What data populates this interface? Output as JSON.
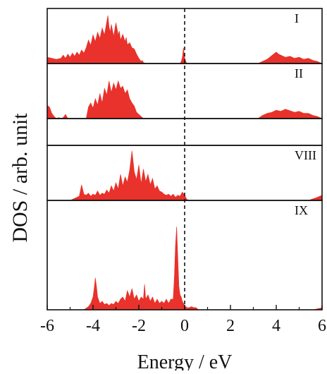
{
  "chart_data": {
    "type": "area",
    "xlabel": "Energy / eV",
    "ylabel": "DOS / arb. unit",
    "xlim": [
      -6,
      6
    ],
    "xticks": [
      -6,
      -4,
      -2,
      0,
      2,
      4,
      6
    ],
    "xtick_labels": [
      "-6",
      "-4",
      "-2",
      "0",
      "2",
      "4",
      "6"
    ],
    "fermi_level": 0,
    "fill_color": "#e8322b",
    "panels": [
      {
        "label": "I",
        "ylim": [
          0,
          1
        ],
        "x": [
          -6,
          -5.8,
          -5.6,
          -5.4,
          -5.3,
          -5.2,
          -5.1,
          -5.0,
          -4.9,
          -4.8,
          -4.7,
          -4.6,
          -4.5,
          -4.4,
          -4.3,
          -4.2,
          -4.1,
          -4.0,
          -3.9,
          -3.8,
          -3.7,
          -3.6,
          -3.5,
          -3.4,
          -3.35,
          -3.3,
          -3.25,
          -3.2,
          -3.1,
          -3.0,
          -2.9,
          -2.85,
          -2.8,
          -2.7,
          -2.6,
          -2.55,
          -2.5,
          -2.4,
          -2.3,
          -2.2,
          -2.1,
          -2.0,
          -1.9,
          -1.85,
          -1.8,
          -1.7,
          -0.2,
          -0.15,
          -0.1,
          -0.05,
          0.0,
          0.05,
          0.1,
          0.2,
          3.2,
          3.4,
          3.6,
          3.8,
          4.0,
          4.1,
          4.2,
          4.4,
          4.6,
          4.8,
          5.0,
          5.2,
          5.4,
          5.6,
          5.8,
          6.0
        ],
        "y": [
          0.12,
          0.1,
          0.08,
          0.1,
          0.16,
          0.1,
          0.18,
          0.12,
          0.2,
          0.14,
          0.22,
          0.16,
          0.26,
          0.2,
          0.3,
          0.45,
          0.35,
          0.55,
          0.42,
          0.6,
          0.48,
          0.68,
          0.55,
          0.8,
          0.92,
          0.7,
          0.6,
          0.75,
          0.52,
          0.78,
          0.55,
          0.62,
          0.45,
          0.56,
          0.42,
          0.5,
          0.36,
          0.4,
          0.3,
          0.28,
          0.18,
          0.1,
          0.04,
          0.06,
          0.02,
          0.0,
          0.0,
          0.04,
          0.12,
          0.3,
          0.12,
          0.04,
          0.0,
          0.0,
          0.0,
          0.04,
          0.08,
          0.15,
          0.22,
          0.18,
          0.16,
          0.12,
          0.14,
          0.1,
          0.12,
          0.08,
          0.1,
          0.06,
          0.04,
          0.0
        ]
      },
      {
        "label": "II",
        "ylim": [
          0,
          1
        ],
        "x": [
          -6,
          -5.9,
          -5.8,
          -5.7,
          -5.6,
          -5.5,
          -5.4,
          -5.3,
          -5.2,
          -5.1,
          -4.3,
          -4.2,
          -4.1,
          -4.0,
          -3.9,
          -3.8,
          -3.7,
          -3.6,
          -3.5,
          -3.4,
          -3.3,
          -3.2,
          -3.1,
          -3.0,
          -2.9,
          -2.8,
          -2.7,
          -2.6,
          -2.5,
          -2.4,
          -2.3,
          -2.2,
          -2.1,
          -2.0,
          -1.9,
          -1.8,
          3.2,
          3.4,
          3.6,
          3.8,
          4.0,
          4.2,
          4.4,
          4.6,
          4.8,
          5.0,
          5.2,
          5.4,
          5.6,
          5.8,
          6.0
        ],
        "y": [
          0.25,
          0.22,
          0.1,
          0.04,
          0.0,
          0.02,
          0.0,
          0.02,
          0.08,
          0.0,
          0.0,
          0.22,
          0.3,
          0.2,
          0.38,
          0.26,
          0.48,
          0.3,
          0.58,
          0.45,
          0.72,
          0.5,
          0.68,
          0.55,
          0.72,
          0.58,
          0.62,
          0.48,
          0.55,
          0.38,
          0.3,
          0.24,
          0.12,
          0.08,
          0.04,
          0.0,
          0.0,
          0.06,
          0.1,
          0.12,
          0.16,
          0.14,
          0.18,
          0.15,
          0.12,
          0.14,
          0.1,
          0.1,
          0.06,
          0.04,
          0.0
        ]
      },
      {
        "label": "",
        "ylim": [
          0,
          1
        ],
        "x": [],
        "y": []
      },
      {
        "label": "VIII",
        "ylim": [
          0,
          1
        ],
        "x": [
          -6,
          -5.0,
          -4.8,
          -4.6,
          -4.5,
          -4.4,
          -4.3,
          -4.2,
          -4.1,
          -4.0,
          -3.9,
          -3.8,
          -3.7,
          -3.6,
          -3.5,
          -3.4,
          -3.3,
          -3.2,
          -3.1,
          -3.0,
          -2.9,
          -2.8,
          -2.7,
          -2.6,
          -2.5,
          -2.4,
          -2.3,
          -2.2,
          -2.1,
          -2.0,
          -1.9,
          -1.8,
          -1.7,
          -1.6,
          -1.5,
          -1.4,
          -1.3,
          -1.2,
          -1.1,
          -1.0,
          -0.9,
          -0.8,
          -0.7,
          -0.6,
          -0.5,
          -0.4,
          -0.3,
          -0.2,
          -0.1,
          0.0,
          0.1,
          0.2,
          5.4,
          5.6,
          5.8,
          6.0
        ],
        "y": [
          0.0,
          0.0,
          0.04,
          0.08,
          0.3,
          0.12,
          0.1,
          0.14,
          0.08,
          0.12,
          0.1,
          0.18,
          0.1,
          0.14,
          0.12,
          0.2,
          0.14,
          0.28,
          0.18,
          0.34,
          0.22,
          0.5,
          0.28,
          0.45,
          0.35,
          0.58,
          0.95,
          0.55,
          0.4,
          0.68,
          0.32,
          0.6,
          0.36,
          0.5,
          0.3,
          0.42,
          0.22,
          0.28,
          0.18,
          0.16,
          0.12,
          0.1,
          0.12,
          0.08,
          0.12,
          0.06,
          0.1,
          0.08,
          0.16,
          0.1,
          0.02,
          0.0,
          0.0,
          0.03,
          0.06,
          0.1
        ]
      },
      {
        "label": "IX",
        "ylim": [
          0,
          1
        ],
        "x": [
          -6,
          -4.4,
          -4.2,
          -4.1,
          -4.0,
          -3.95,
          -3.9,
          -3.85,
          -3.8,
          -3.7,
          -3.6,
          -3.5,
          -3.4,
          -3.3,
          -3.2,
          -3.1,
          -3.0,
          -2.9,
          -2.8,
          -2.7,
          -2.6,
          -2.5,
          -2.4,
          -2.3,
          -2.2,
          -2.1,
          -2.0,
          -1.9,
          -1.8,
          -1.75,
          -1.7,
          -1.6,
          -1.5,
          -1.4,
          -1.3,
          -1.2,
          -1.1,
          -1.0,
          -0.9,
          -0.8,
          -0.7,
          -0.6,
          -0.5,
          -0.45,
          -0.4,
          -0.35,
          -0.3,
          -0.25,
          -0.2,
          -0.15,
          -0.1,
          0.0,
          0.1,
          0.2,
          0.3,
          0.4,
          0.5,
          0.6,
          0.8,
          1.0,
          5.6,
          5.8,
          6.0
        ],
        "y": [
          0.0,
          0.0,
          0.03,
          0.06,
          0.12,
          0.2,
          0.3,
          0.22,
          0.12,
          0.06,
          0.08,
          0.05,
          0.06,
          0.04,
          0.06,
          0.05,
          0.08,
          0.06,
          0.1,
          0.12,
          0.08,
          0.18,
          0.12,
          0.2,
          0.1,
          0.14,
          0.08,
          0.12,
          0.1,
          0.24,
          0.1,
          0.14,
          0.08,
          0.12,
          0.06,
          0.1,
          0.06,
          0.08,
          0.06,
          0.1,
          0.06,
          0.1,
          0.1,
          0.3,
          0.6,
          0.78,
          0.5,
          0.22,
          0.14,
          0.12,
          0.08,
          0.04,
          0.02,
          0.02,
          0.03,
          0.02,
          0.02,
          0.0,
          0.0,
          0.0,
          0.0,
          0.01,
          0.02
        ]
      }
    ]
  }
}
